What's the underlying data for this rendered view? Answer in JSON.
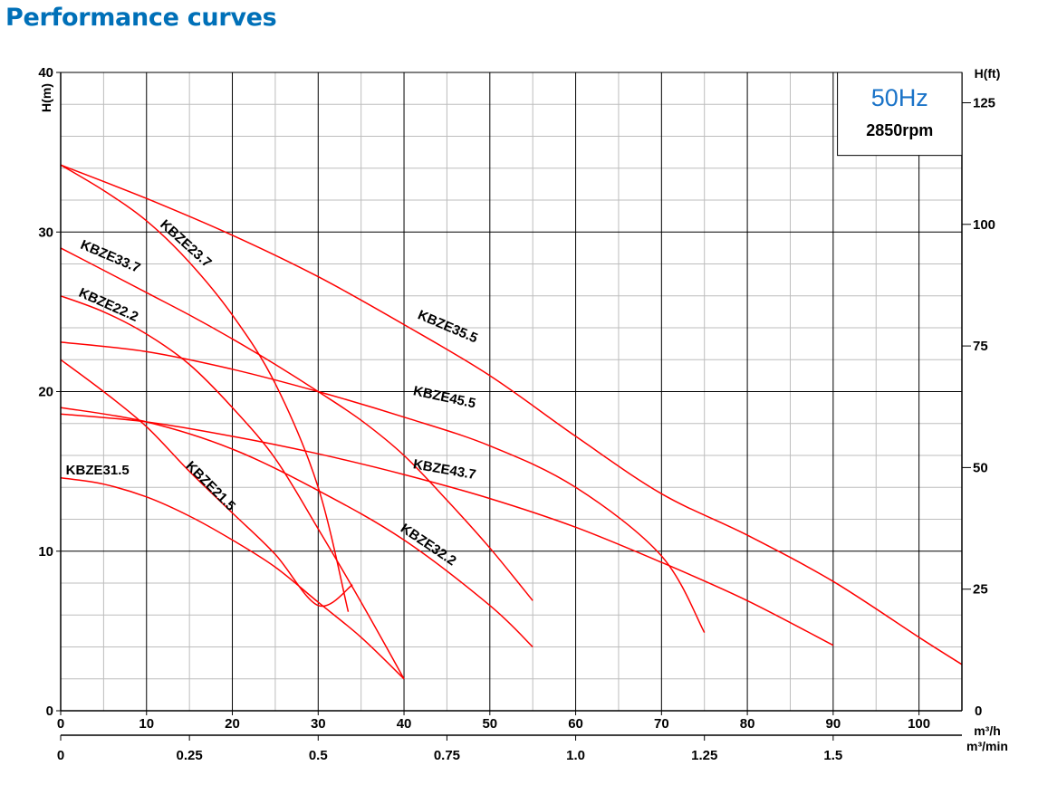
{
  "title": "Performance curves",
  "colors": {
    "title": "#0070b8",
    "curve": "#ff0000",
    "freq": "#1a73c8",
    "grid_major": "#000000",
    "grid_minor": "#bdbdbd"
  },
  "chart_data": {
    "type": "line",
    "title": "Performance curves",
    "frequency_label": "50Hz",
    "speed_label": "2850rpm",
    "ylabel": "H(m)",
    "ylabel_right": "H(ft)",
    "xlabel": "m³/h",
    "xlabel_secondary": "m³/min",
    "xlim": [
      0,
      105
    ],
    "ylim": [
      0,
      40
    ],
    "x_ticks": [
      0,
      10,
      20,
      30,
      40,
      50,
      60,
      70,
      80,
      90,
      100
    ],
    "y_ticks": [
      0,
      10,
      20,
      30,
      40
    ],
    "ft_ticks": [
      25,
      50,
      75,
      100,
      125
    ],
    "ft_tick_labels": [
      "25",
      "50",
      "75",
      "100",
      "125"
    ],
    "ft_zero_label": "0",
    "x2_ticks": [
      0,
      0.25,
      0.5,
      0.75,
      1.0,
      1.25,
      1.5
    ],
    "x2_tick_labels": [
      "0",
      "0.25",
      "0.5",
      "0.75",
      "1.0",
      "1.25",
      "1.5"
    ],
    "grid": true,
    "series": [
      {
        "name": "KBZE35.5",
        "x": [
          0,
          10,
          20,
          30,
          40,
          50,
          60,
          70,
          80,
          90,
          100,
          105
        ],
        "y": [
          34.2,
          32.1,
          29.8,
          27.2,
          24.2,
          21.0,
          17.2,
          13.6,
          11.0,
          8.1,
          4.6,
          2.9
        ]
      },
      {
        "name": "KBZE23.7",
        "x": [
          0,
          5,
          10,
          15,
          20,
          25,
          30,
          33.5
        ],
        "y": [
          34.2,
          32.6,
          30.7,
          28.1,
          24.8,
          20.5,
          14.0,
          6.2
        ]
      },
      {
        "name": "KBZE33.7",
        "x": [
          0,
          5,
          10,
          15,
          20,
          25,
          30,
          35,
          40,
          45,
          50,
          55
        ],
        "y": [
          29.0,
          27.6,
          26.2,
          24.8,
          23.3,
          21.7,
          20.0,
          18.2,
          16.0,
          13.2,
          10.2,
          6.9
        ]
      },
      {
        "name": "KBZE22.2",
        "x": [
          0,
          5,
          10,
          15,
          20,
          25,
          30,
          35,
          40
        ],
        "y": [
          26.0,
          25.0,
          23.6,
          21.7,
          19.0,
          15.8,
          11.4,
          6.8,
          2.0
        ]
      },
      {
        "name": "KBZE45.5",
        "x": [
          0,
          10,
          20,
          30,
          40,
          50,
          60,
          70,
          75
        ],
        "y": [
          23.1,
          22.5,
          21.4,
          20.0,
          18.4,
          16.6,
          14.0,
          9.7,
          4.9
        ]
      },
      {
        "name": "KBZE43.7",
        "x": [
          0,
          10,
          20,
          30,
          40,
          50,
          60,
          70,
          80,
          90
        ],
        "y": [
          18.6,
          18.1,
          17.2,
          16.1,
          14.8,
          13.3,
          11.5,
          9.3,
          6.9,
          4.1
        ]
      },
      {
        "name": "KBZE32.2",
        "x": [
          0,
          10,
          20,
          30,
          40,
          50,
          55
        ],
        "y": [
          19.0,
          18.1,
          16.4,
          13.8,
          10.7,
          6.6,
          4.0
        ]
      },
      {
        "name": "KBZE21.5",
        "x": [
          0,
          5,
          10,
          15,
          20,
          25,
          30,
          34
        ],
        "y": [
          22.0,
          20.0,
          17.8,
          15.0,
          12.4,
          9.8,
          6.6,
          7.9
        ]
      },
      {
        "name": "KBZE31.5",
        "x": [
          0,
          5,
          10,
          15,
          20,
          25,
          30,
          35,
          40
        ],
        "y": [
          14.6,
          14.2,
          13.4,
          12.2,
          10.7,
          9.0,
          6.8,
          4.6,
          2.0
        ]
      }
    ]
  }
}
